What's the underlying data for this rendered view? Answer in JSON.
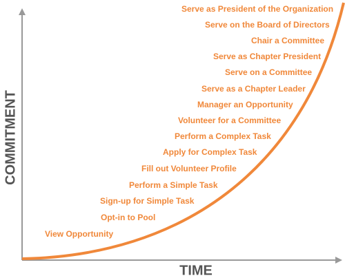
{
  "axes": {
    "y_label": "COMMITMENT",
    "x_label": "TIME"
  },
  "steps": [
    "Serve as President of the Organization",
    "Serve on the Board of Directors",
    "Chair a Committee",
    "Serve as Chapter President",
    "Serve on a Committee",
    "Serve as a Chapter Leader",
    "Manager an Opportunity",
    "Volunteer for a Committee",
    "Perform a Complex Task",
    "Apply for Complex Task",
    "Fill out Volunteer Profile",
    "Perform a Simple Task",
    "Sign-up for Simple Task",
    "Opt-in to Pool",
    "View Opportunity"
  ]
}
